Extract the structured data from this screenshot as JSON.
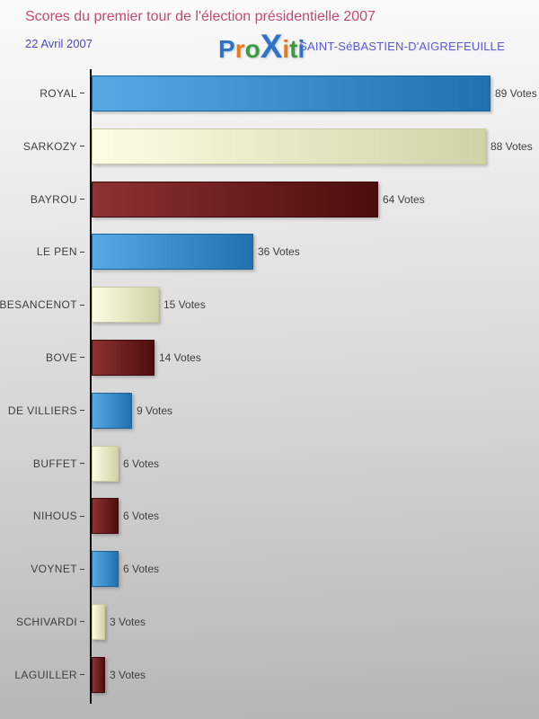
{
  "header": {
    "title": "Scores du premier tour de l'élection présidentielle 2007",
    "date": "22 Avril 2007",
    "location": "SAINT-SéBASTIEN-D'AIGREFEUILLE"
  },
  "logo": {
    "text": "Proxiti",
    "letters": [
      {
        "ch": "P",
        "color": "#2e73c8",
        "big": false
      },
      {
        "ch": "r",
        "color": "#e87a1e",
        "big": false
      },
      {
        "ch": "o",
        "color": "#3c9b3c",
        "big": false
      },
      {
        "ch": "X",
        "color": "#2e73c8",
        "big": true
      },
      {
        "ch": "i",
        "color": "#e87a1e",
        "big": false
      },
      {
        "ch": "t",
        "color": "#3c9b3c",
        "big": false
      },
      {
        "ch": "i",
        "color": "#2e73c8",
        "big": false
      }
    ]
  },
  "chart_data": {
    "type": "bar",
    "orientation": "horizontal",
    "categories": [
      "ROYAL",
      "SARKOZY",
      "BAYROU",
      "LE PEN",
      "BESANCENOT",
      "BOVE",
      "DE VILLIERS",
      "BUFFET",
      "NIHOUS",
      "VOYNET",
      "SCHIVARDI",
      "LAGUILLER"
    ],
    "values": [
      89,
      88,
      64,
      36,
      15,
      14,
      9,
      6,
      6,
      6,
      3,
      3
    ],
    "value_suffix": " Votes",
    "xlim": [
      0,
      89
    ],
    "grid": false,
    "legend": "none",
    "bar_colors_cycle": [
      "blue",
      "cream",
      "darkred"
    ],
    "colors": {
      "blue": {
        "from": "#58a8e2",
        "to": "#2171ae",
        "border": "#1b619c"
      },
      "cream": {
        "from": "#fdfde4",
        "to": "#d2d2a6",
        "border": "#c9c99f"
      },
      "darkred": {
        "from": "#8e3232",
        "to": "#4c0d0d",
        "border": "#400a0a"
      }
    }
  },
  "colors": {
    "title": "#c6496d",
    "date": "#4745c5",
    "location": "#5b5bd6",
    "axis": "#0d0d0d",
    "label_text": "#3e3e3e"
  }
}
